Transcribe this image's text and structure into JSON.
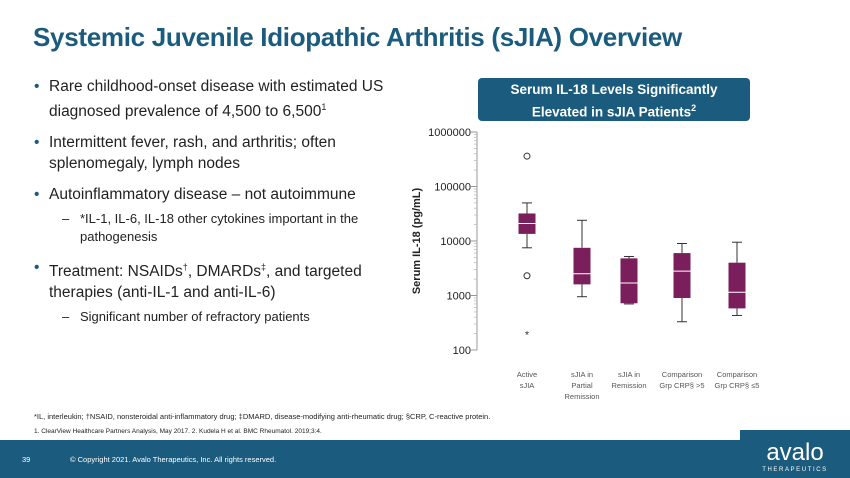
{
  "title": "Systemic Juvenile Idiopathic Arthritis (sJIA) Overview",
  "bullets": {
    "b1": "Rare childhood-onset disease with estimated US diagnosed prevalence of 4,500 to 6,500",
    "b1_sup": "1",
    "b2": "Intermittent fever, rash, and arthritis; often splenomegaly, lymph nodes",
    "b3": "Autoinflammatory disease – not autoimmune",
    "b3_sub": "*IL-1, IL-6, IL-18 other cytokines important in the pathogenesis",
    "b4_part1": "Treatment: NSAIDs",
    "b4_sup1": "†",
    "b4_part2": ", DMARDs",
    "b4_sup2": "‡",
    "b4_part3": ", and targeted therapies (anti-IL-1 and anti-IL-6)",
    "b4_sub": "Significant number of refractory patients"
  },
  "chart_header": {
    "line1": "Serum IL-18 Levels Significantly",
    "line2": "Elevated in sJIA Patients",
    "sup": "2"
  },
  "chart_data": {
    "type": "box",
    "ylabel": "Serum IL-18 (pg/mL)",
    "yscale": "log",
    "ylim": [
      100,
      1000000
    ],
    "yticks": [
      "1000000",
      "100000",
      "10000",
      "1000",
      "100"
    ],
    "box_color": "#7a1f5c",
    "categories": [
      [
        "Active",
        "sJIA"
      ],
      [
        "sJIA in",
        "Partial",
        "Remission"
      ],
      [
        "sJIA in",
        "Remission"
      ],
      [
        "Comparison",
        "Grp CRP§ >5"
      ],
      [
        "Comparison",
        "Grp CRP§ ≤5"
      ]
    ],
    "boxes": [
      {
        "min": 7500,
        "q1": 13500,
        "median": 21000,
        "q3": 32000,
        "max": 50000,
        "outliers": [
          360000,
          2300
        ],
        "extreme": [
          200
        ]
      },
      {
        "min": 950,
        "q1": 1600,
        "median": 2500,
        "q3": 7500,
        "max": 24000,
        "outliers": [],
        "extreme": []
      },
      {
        "min": 700,
        "q1": 720,
        "median": 1700,
        "q3": 4800,
        "max": 5200,
        "outliers": [],
        "extreme": []
      },
      {
        "min": 330,
        "q1": 900,
        "median": 2800,
        "q3": 6000,
        "max": 9000,
        "outliers": [],
        "extreme": []
      },
      {
        "min": 430,
        "q1": 580,
        "median": 1150,
        "q3": 4000,
        "max": 9500,
        "outliers": [],
        "extreme": []
      }
    ]
  },
  "footnotes": {
    "line1": "*IL, interleukin; †NSAID, nonsteroidal anti-inflammatory drug; ‡DMARD, disease-modifying anti-rheumatic drug; §CRP, C-reactive protein.",
    "line2": "1. ClearView Healthcare Partners Analysis, May 2017. 2. Kudela H et al. BMC Rheumatol. 2019;3:4."
  },
  "footer": {
    "page": "39",
    "copyright": "© Copyright 2021. Avalo Therapeutics, Inc. All rights reserved."
  },
  "logo": {
    "word": "avalo",
    "sub": "THERAPEUTICS"
  }
}
